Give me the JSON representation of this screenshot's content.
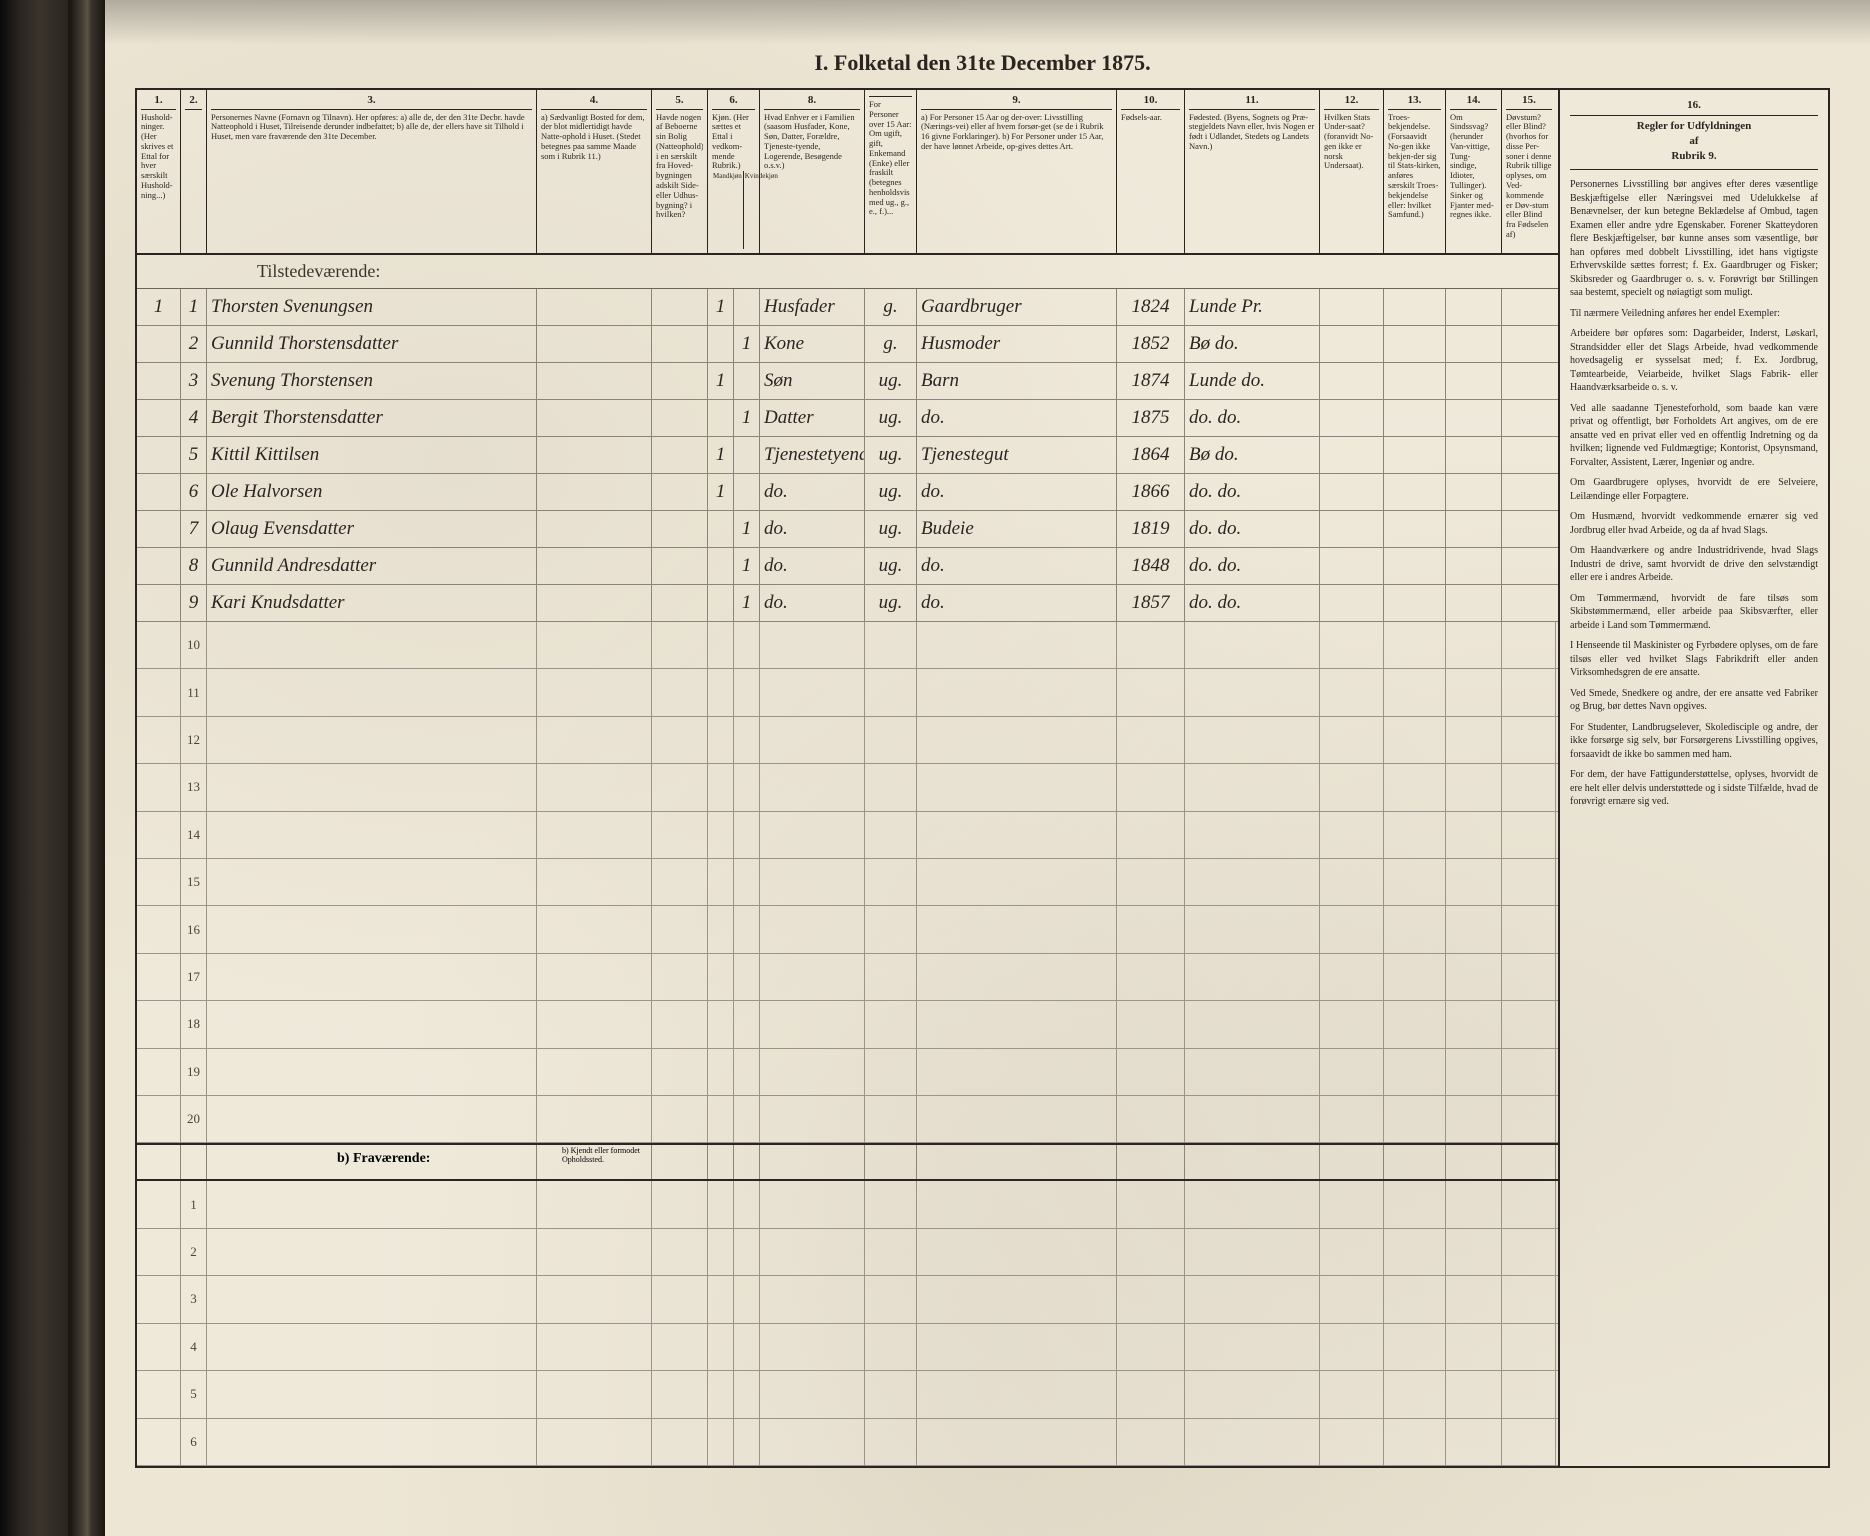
{
  "title": "I.  Folketal den 31te December 1875.",
  "columns": [
    {
      "num": "1.",
      "w": "w1",
      "text": "Hushold-ninger. (Her skrives et Ettal for hver særskilt Hushold-ning...)"
    },
    {
      "num": "2.",
      "w": "w2",
      "text": ""
    },
    {
      "num": "3.",
      "w": "w3",
      "text": "Personernes Navne (Fornavn og Tilnavn).\nHer opføres:\na) alle de, der den 31te Decbr. havde Natteophold i Huset, Tilreisende derunder indbefattet;\nb) alle de, der ellers have sit Tilhold i Huset, men vare fraværende den 31te December."
    },
    {
      "num": "4.",
      "w": "w4",
      "text": "a) Sædvanligt Bosted for dem, der blot midlertidigt havde Natte-ophold i Huset. (Stedet betegnes paa samme Maade som i Rubrik 11.)"
    },
    {
      "num": "5.",
      "w": "w5",
      "text": "Havde nogen af Beboerne sin Bolig (Natteophold) i en særskilt fra Hoved-bygningen adskilt Side- eller Udhus-bygning? i hvilken?"
    },
    {
      "num": "6.",
      "w": "w6",
      "text": "Kjøn. (Her sættes et Ettal i vedkom-mende Rubrik.)",
      "sub": [
        "Mandkjøn",
        "Kvindekjøn"
      ]
    },
    {
      "num": "7.",
      "w": "w7",
      "text": ""
    },
    {
      "num": "8.",
      "w": "w8",
      "text": "Hvad Enhver er i Familien (saasom Husfader, Kone, Søn, Datter, Forældre, Tjeneste-tyende, Logerende, Besøgende o.s.v.)"
    },
    {
      "num": "",
      "w": "",
      "text": "For Personer over 15 Aar: Om ugift, gift, Enkemand (Enke) eller fraskilt (betegnes henholdsvis med ug., g., e., f.)..."
    },
    {
      "num": "9.",
      "w": "w9",
      "text": "a) For Personer 15 Aar og der-over: Livsstilling (Nærings-vei) eller af hvem forsør-get (se de i Rubrik 16 givne Forklaringer).\nb) For Personer under 15 Aar, der have lønnet Arbeide, op-gives dettes Art."
    },
    {
      "num": "10.",
      "w": "w10",
      "text": "Fødsels-aar."
    },
    {
      "num": "11.",
      "w": "w11",
      "text": "Fødested. (Byens, Sognets og Præ-stegjeldets Navn eller, hvis Nogen er født i Udlandet, Stedets og Landets Navn.)"
    },
    {
      "num": "12.",
      "w": "w12",
      "text": "Hvilken Stats Under-saat? (foranvidt No-gen ikke er norsk Undersaat)."
    },
    {
      "num": "13.",
      "w": "w13",
      "text": "Troes-bekjendelse. (Forsaavidt No-gen ikke bekjen-der sig til Stats-kirken, anføres særskilt Troes-bekjendelse eller: hvilket Samfund.)"
    },
    {
      "num": "14.",
      "w": "w14",
      "text": "Om Sindssvag? (herunder Van-vittige, Tung-sindige, Idioter, Tullinger). Sinker og Fjanter med-regnes ikke."
    },
    {
      "num": "15.",
      "w": "w15",
      "text": "Døvstum? eller Blind? (hvorhos for disse Per-soner i denne Rubrik tillige oplyses, om Ved-kommende er Døv-stum eller Blind fra Fødselen af)"
    }
  ],
  "section_present": "Tilstedeværende:",
  "rows": [
    {
      "n1": "1",
      "n2": "1",
      "name": "Thorsten Svenungsen",
      "c4": "",
      "c5": "",
      "c6": "1",
      "c7": "",
      "c8": "Husfader",
      "cg": "g.",
      "c9": "Gaardbruger",
      "c10": "1824",
      "c11": "Lunde Pr."
    },
    {
      "n1": "",
      "n2": "2",
      "name": "Gunnild Thorstensdatter",
      "c4": "",
      "c5": "",
      "c6": "",
      "c7": "1",
      "c8": "Kone",
      "cg": "g.",
      "c9": "Husmoder",
      "c10": "1852",
      "c11": "Bø   do."
    },
    {
      "n1": "",
      "n2": "3",
      "name": "Svenung Thorstensen",
      "c4": "",
      "c5": "",
      "c6": "1",
      "c7": "",
      "c8": "Søn",
      "cg": "ug.",
      "c9": "Barn",
      "c10": "1874",
      "c11": "Lunde do."
    },
    {
      "n1": "",
      "n2": "4",
      "name": "Bergit Thorstensdatter",
      "c4": "",
      "c5": "",
      "c6": "",
      "c7": "1",
      "c8": "Datter",
      "cg": "ug.",
      "c9": "do.",
      "c10": "1875",
      "c11": "do.   do."
    },
    {
      "n1": "",
      "n2": "5",
      "name": "Kittil Kittilsen",
      "c4": "",
      "c5": "",
      "c6": "1",
      "c7": "",
      "c8": "Tjenestetyende",
      "cg": "ug.",
      "c9": "Tjenestegut",
      "c10": "1864",
      "c11": "Bø   do."
    },
    {
      "n1": "",
      "n2": "6",
      "name": "Ole Halvorsen",
      "c4": "",
      "c5": "",
      "c6": "1",
      "c7": "",
      "c8": "do.",
      "cg": "ug.",
      "c9": "do.",
      "c10": "1866",
      "c11": "do.   do."
    },
    {
      "n1": "",
      "n2": "7",
      "name": "Olaug Evensdatter",
      "c4": "",
      "c5": "",
      "c6": "",
      "c7": "1",
      "c8": "do.",
      "cg": "ug.",
      "c9": "Budeie",
      "c10": "1819",
      "c11": "do.   do."
    },
    {
      "n1": "",
      "n2": "8",
      "name": "Gunnild Andresdatter",
      "c4": "",
      "c5": "",
      "c6": "",
      "c7": "1",
      "c8": "do.",
      "cg": "ug.",
      "c9": "do.",
      "c10": "1848",
      "c11": "do.   do."
    },
    {
      "n1": "",
      "n2": "9",
      "name": "Kari Knudsdatter",
      "c4": "",
      "c5": "",
      "c6": "",
      "c7": "1",
      "c8": "do.",
      "cg": "ug.",
      "c9": "do.",
      "c10": "1857",
      "c11": "do.   do."
    }
  ],
  "empty_present": [
    "10",
    "11",
    "12",
    "13",
    "14",
    "15",
    "16",
    "17",
    "18",
    "19",
    "20"
  ],
  "section_absent_label": "b) Fraværende:",
  "section_absent_note": "b) Kjendt eller formodet Opholdssted.",
  "empty_absent": [
    "1",
    "2",
    "3",
    "4",
    "5",
    "6"
  ],
  "sidebar": {
    "colnum": "16.",
    "title": "Regler for Udfyldningen\naf\nRubrik 9.",
    "paras": [
      "Personernes Livsstilling bør angives efter deres væsentlige Beskjæftigelse eller Næringsvei med Udelukkelse af Benævnelser, der kun betegne Beklædelse af Ombud, tagen Examen eller andre ydre Egenskaber. Forener Skatteydoren flere Beskjæftigelser, bør kunne anses som væsentlige, bør han opføres med dobbelt Livsstilling, idet hans vigtigste Erhvervskilde sættes forrest; f. Ex. Gaardbruger og Fisker; Skibsreder og Gaardbruger o. s. v. Forøvrigt bør Stillingen saa bestemt, specielt og nøiagtigt som muligt.",
      "Til nærmere Veiledning anføres her endel Exempler:",
      "Arbeidere bør opføres som: Dagarbeider, Inderst, Løskarl, Strandsidder eller det Slags Arbeide, hvad vedkommende hovedsagelig er sysselsat med; f. Ex. Jordbrug, Tømtearbeide, Veiarbeide, hvilket Slags Fabrik- eller Haandværksarbeide o. s. v.",
      "Ved alle saadanne Tjenesteforhold, som baade kan være privat og offentligt, bør Forholdets Art angives, om de ere ansatte ved en privat eller ved en offentlig Indretning og da hvilken; lignende ved Fuldmægtige; Kontorist, Opsynsmand, Forvalter, Assistent, Lærer, Ingeniør og andre.",
      "Om Gaardbrugere oplyses, hvorvidt de ere Selveiere, Leilændinge eller Forpagtere.",
      "Om Husmænd, hvorvidt vedkommende ernærer sig ved Jordbrug eller hvad Arbeide, og da af hvad Slags.",
      "Om Haandværkere og andre Industridrivende, hvad Slags Industri de drive, samt hvorvidt de drive den selvstændigt eller ere i andres Arbeide.",
      "Om Tømmermænd, hvorvidt de fare tilsøs som Skibstømmermænd, eller arbeide paa Skibsværfter, eller arbeide i Land som Tømmermænd.",
      "I Henseende til Maskinister og Fyrbødere oplyses, om de fare tilsøs eller ved hvilket Slags Fabrikdrift eller anden Virksomhedsgren de ere ansatte.",
      "Ved Smede, Snedkere og andre, der ere ansatte ved Fabriker og Brug, bør dettes Navn opgives.",
      "For Studenter, Landbrugselever, Skoledisciple og andre, der ikke forsørge sig selv, bør Forsørgerens Livsstilling opgives, forsaavidt de ikke bo sammen med ham.",
      "For dem, der have Fattigunderstøttelse, oplyses, hvorvidt de ere helt eller delvis understøttede og i sidste Tilfælde, hvad de forøvrigt ernære sig ved."
    ]
  },
  "colors": {
    "paper": "#ede6d4",
    "ink": "#2a2520",
    "rule_dark": "#2a2520",
    "rule_light": "#8a847a",
    "shadow": "#0a0a0a"
  }
}
